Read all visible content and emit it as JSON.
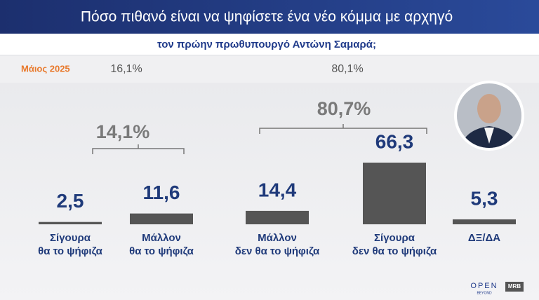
{
  "chart_data": {
    "type": "bar",
    "title": "Πόσο πιθανό είναι να ψηφίσετε ένα νέο κόμμα με αρχηγό",
    "subtitle": "τον πρώην πρωθυπουργό Αντώνη Σαμαρά;",
    "previous": {
      "label": "Μάιος 2025",
      "texts": [
        "16,1%",
        "80,1%"
      ]
    },
    "categories": [
      [
        "Σίγουρα",
        "θα το ψήφιζα"
      ],
      [
        "Μάλλον",
        "θα το ψήφιζα"
      ],
      [
        "Μάλλον",
        "δεν θα το ψήφιζα"
      ],
      [
        "Σίγουρα",
        "δεν θα το ψήφιζα"
      ],
      [
        "ΔΞ/ΔΑ"
      ]
    ],
    "values": [
      2.5,
      11.6,
      14.4,
      66.3,
      5.3
    ],
    "value_labels": [
      "2,5",
      "11,6",
      "14,4",
      "66,3",
      "5,3"
    ],
    "color": "#555555",
    "groups": [
      {
        "label": "14,1%",
        "value": 14.1
      },
      {
        "label": "80,7%",
        "value": 80.7
      }
    ],
    "footer": {
      "brand": "OPEN",
      "tagline": "BEYOND",
      "source": "MRB"
    }
  }
}
